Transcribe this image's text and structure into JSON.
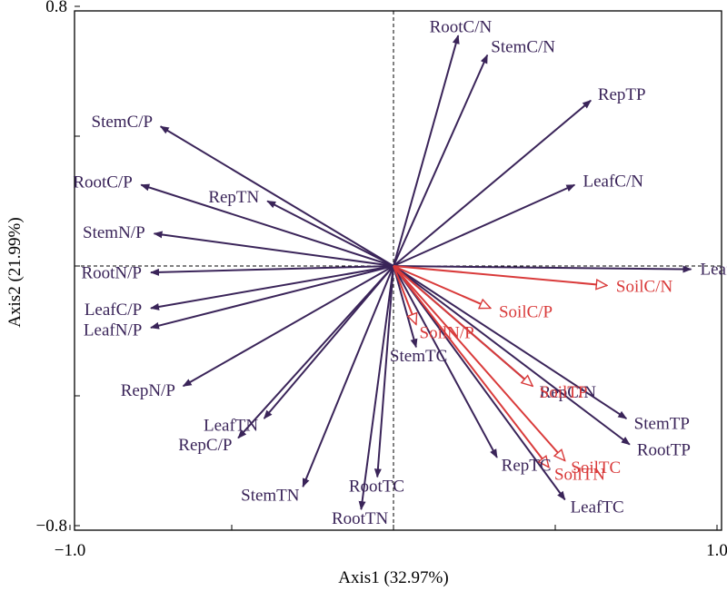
{
  "chart_data": {
    "type": "scatter",
    "subtype": "biplot",
    "xlabel": "Axis1 (32.97%)",
    "ylabel": "Axis2 (21.99%)",
    "xlim": [
      -1.0,
      1.0
    ],
    "ylim": [
      -0.8,
      0.8
    ],
    "x_ticks": [
      {
        "value": -1.0,
        "label": "−1.0"
      },
      {
        "value": 1.0,
        "label": "1.0"
      }
    ],
    "y_ticks": [
      {
        "value": 0.8,
        "label": "0.8"
      },
      {
        "value": -0.8,
        "label": "−0.8"
      }
    ],
    "colors": {
      "plant": "#3a2459",
      "soil": "#d93a3a"
    },
    "plant_vectors": [
      {
        "label": "RootC/N",
        "x": 0.2,
        "y": 0.71
      },
      {
        "label": "StemC/N",
        "x": 0.29,
        "y": 0.65
      },
      {
        "label": "RepTP",
        "x": 0.61,
        "y": 0.51
      },
      {
        "label": "LeafC/N",
        "x": 0.56,
        "y": 0.25
      },
      {
        "label": "LeafTP",
        "x": 0.92,
        "y": -0.01
      },
      {
        "label": "StemC/P",
        "x": -0.72,
        "y": 0.43
      },
      {
        "label": "RootC/P",
        "x": -0.78,
        "y": 0.25
      },
      {
        "label": "RepTN",
        "x": -0.39,
        "y": 0.2
      },
      {
        "label": "StemN/P",
        "x": -0.74,
        "y": 0.1
      },
      {
        "label": "RootN/P",
        "x": -0.75,
        "y": -0.02
      },
      {
        "label": "LeafC/P",
        "x": -0.75,
        "y": -0.13
      },
      {
        "label": "LeafN/P",
        "x": -0.75,
        "y": -0.19
      },
      {
        "label": "RepN/P",
        "x": -0.65,
        "y": -0.37
      },
      {
        "label": "RepC/P",
        "x": -0.48,
        "y": -0.53
      },
      {
        "label": "LeafTN",
        "x": -0.4,
        "y": -0.47
      },
      {
        "label": "StemTN",
        "x": -0.28,
        "y": -0.68
      },
      {
        "label": "RootTN",
        "x": -0.1,
        "y": -0.75
      },
      {
        "label": "RootTC",
        "x": -0.05,
        "y": -0.65
      },
      {
        "label": "StemTC",
        "x": 0.07,
        "y": -0.25
      },
      {
        "label": "RepTC",
        "x": 0.32,
        "y": -0.59
      },
      {
        "label": "RepC/N",
        "x": 0.43,
        "y": -0.37
      },
      {
        "label": "StemTP",
        "x": 0.72,
        "y": -0.47
      },
      {
        "label": "RootTP",
        "x": 0.73,
        "y": -0.55
      },
      {
        "label": "LeafTC",
        "x": 0.53,
        "y": -0.72
      }
    ],
    "soil_vectors": [
      {
        "label": "SoilC/N",
        "x": 0.66,
        "y": -0.06
      },
      {
        "label": "SoilC/P",
        "x": 0.3,
        "y": -0.13
      },
      {
        "label": "SoilN/P",
        "x": 0.07,
        "y": -0.18
      },
      {
        "label": "SoilTP",
        "x": 0.43,
        "y": -0.37
      },
      {
        "label": "SoilTC",
        "x": 0.53,
        "y": -0.6
      },
      {
        "label": "SoilTN",
        "x": 0.48,
        "y": -0.62
      }
    ]
  }
}
